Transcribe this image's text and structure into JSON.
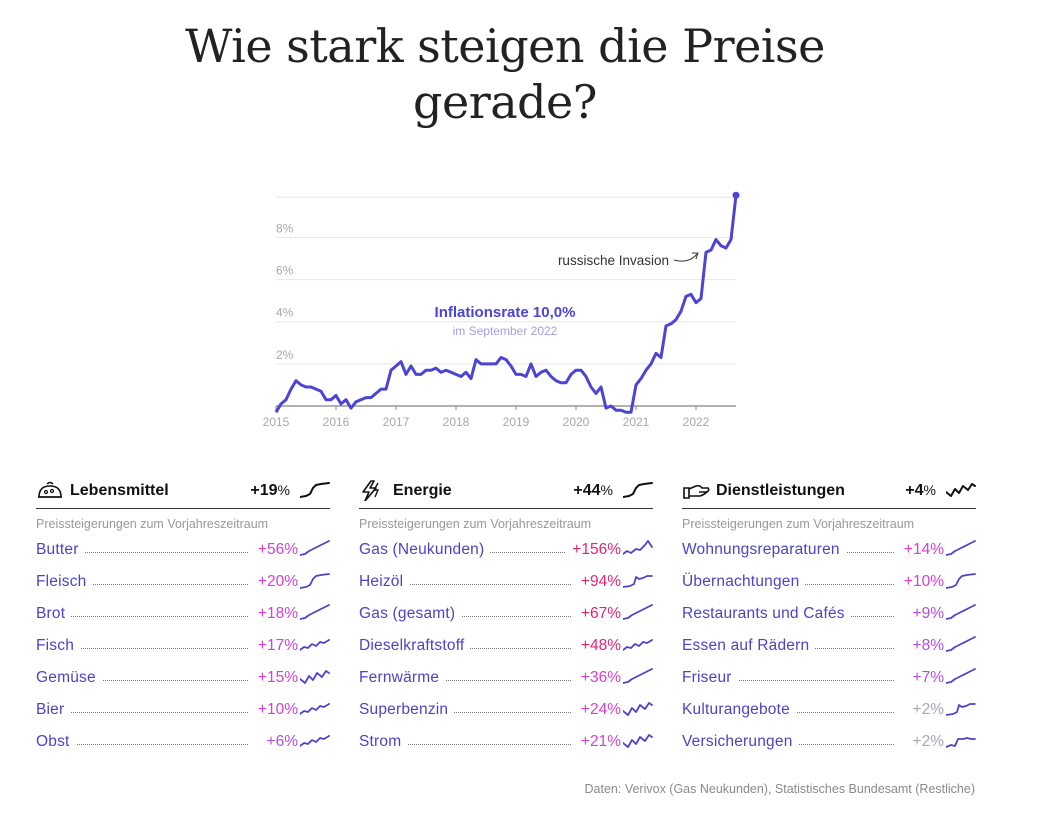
{
  "title_line1": "Wie stark steigen die Preise",
  "title_line2": "gerade?",
  "chart_data": [
    {
      "type": "line",
      "title": "",
      "x_ticks": [
        "2015",
        "2016",
        "2017",
        "2018",
        "2019",
        "2020",
        "2021",
        "2022"
      ],
      "y_ticks": [
        "2%",
        "4%",
        "6%",
        "8%"
      ],
      "ylim": [
        0,
        10
      ],
      "grid": true,
      "annotation_label": "Inflationsrate 10,0%",
      "annotation_sub": "im September 2022",
      "invasion_label": "russische Invasion",
      "color": "#4b44d4",
      "series": [
        {
          "x_start": "2015-01",
          "x_step": "month",
          "values": [
            -0.3,
            0.1,
            0.3,
            0.8,
            1.2,
            1.0,
            0.9,
            0.9,
            0.8,
            0.7,
            0.3,
            0.3,
            0.5,
            0.1,
            0.3,
            -0.1,
            0.2,
            0.3,
            0.4,
            0.4,
            0.6,
            0.8,
            0.8,
            1.7,
            1.9,
            2.1,
            1.5,
            1.9,
            1.5,
            1.5,
            1.7,
            1.7,
            1.8,
            1.6,
            1.7,
            1.6,
            1.5,
            1.4,
            1.6,
            1.3,
            2.2,
            2.0,
            2.0,
            2.0,
            2.0,
            2.3,
            2.2,
            1.9,
            1.5,
            1.5,
            1.4,
            2.0,
            1.4,
            1.6,
            1.7,
            1.4,
            1.2,
            1.1,
            1.1,
            1.5,
            1.7,
            1.7,
            1.4,
            0.9,
            0.6,
            0.9,
            -0.1,
            0.0,
            -0.2,
            -0.2,
            -0.3,
            -0.3,
            1.0,
            1.3,
            1.7,
            2.0,
            2.5,
            2.3,
            3.8,
            3.9,
            4.1,
            4.5,
            5.2,
            5.3,
            4.9,
            5.1,
            7.3,
            7.4,
            7.9,
            7.6,
            7.5,
            7.9,
            10.0
          ]
        }
      ]
    },
    {
      "type": "table",
      "name": "Lebensmittel",
      "icon": "food-icon",
      "total": "+19",
      "total_unit": "%",
      "subtitle": "Preissteigerungen zum Vorjahreszeitraum",
      "rows": [
        {
          "label": "Butter",
          "value": "+56%",
          "color": "#d63fd1"
        },
        {
          "label": "Fleisch",
          "value": "+20%",
          "color": "#d63fd1"
        },
        {
          "label": "Brot",
          "value": "+18%",
          "color": "#d63fd1"
        },
        {
          "label": "Fisch",
          "value": "+17%",
          "color": "#d63fd1"
        },
        {
          "label": "Gemüse",
          "value": "+15%",
          "color": "#d63fd1"
        },
        {
          "label": "Bier",
          "value": "+10%",
          "color": "#d63fd1"
        },
        {
          "label": "Obst",
          "value": "+6%",
          "color": "#b04ee0"
        }
      ]
    },
    {
      "type": "table",
      "name": "Energie",
      "icon": "lightning-icon",
      "total": "+44",
      "total_unit": "%",
      "subtitle": "Preissteigerungen zum Vorjahreszeitraum",
      "rows": [
        {
          "label": "Gas (Neukunden)",
          "value": "+156%",
          "color": "#e52474"
        },
        {
          "label": "Heizöl",
          "value": "+94%",
          "color": "#e52474"
        },
        {
          "label": "Gas (gesamt)",
          "value": "+67%",
          "color": "#e52474"
        },
        {
          "label": "Dieselkraftstoff",
          "value": "+48%",
          "color": "#e52474"
        },
        {
          "label": "Fernwärme",
          "value": "+36%",
          "color": "#d63fd1"
        },
        {
          "label": "Superbenzin",
          "value": "+24%",
          "color": "#d63fd1"
        },
        {
          "label": "Strom",
          "value": "+21%",
          "color": "#d63fd1"
        }
      ]
    },
    {
      "type": "table",
      "name": "Dienstleistungen",
      "icon": "hand-icon",
      "total": "+4",
      "total_unit": "%",
      "subtitle": "Preissteigerungen zum Vorjahreszeitraum",
      "rows": [
        {
          "label": "Wohnungsreparaturen",
          "value": "+14%",
          "color": "#d63fd1"
        },
        {
          "label": "Übernachtungen",
          "value": "+10%",
          "color": "#d63fd1"
        },
        {
          "label": "Restaurants und Cafés",
          "value": "+9%",
          "color": "#b04ee0"
        },
        {
          "label": "Essen auf Rädern",
          "value": "+8%",
          "color": "#b04ee0"
        },
        {
          "label": "Friseur",
          "value": "+7%",
          "color": "#b04ee0"
        },
        {
          "label": "Kulturangebote",
          "value": "+2%",
          "color": "#a6a6b8"
        },
        {
          "label": "Versicherungen",
          "value": "+2%",
          "color": "#a6a6b8"
        }
      ]
    }
  ],
  "source": "Daten: Verivox (Gas Neukunden), Statistisches Bundesamt (Restliche)"
}
